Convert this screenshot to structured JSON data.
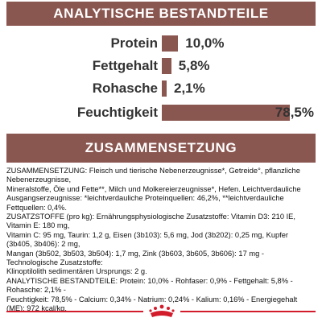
{
  "analysis": {
    "title": "ANALYTISCHE BESTANDTEILE",
    "items": [
      {
        "label": "Protein",
        "value": "10,0%",
        "percent": 10.0
      },
      {
        "label": "Fettgehalt",
        "value": "5,8%",
        "percent": 5.8
      },
      {
        "label": "Rohasche",
        "value": "2,1%",
        "percent": 2.1
      },
      {
        "label": "Feuchtigkeit",
        "value": "78,5%",
        "percent": 78.5
      }
    ]
  },
  "composition": {
    "title": "ZUSAMMENSETZUNG",
    "text": "ZUSAMMENSETZUNG: Fleisch und tierische Nebenerzeugnisse*, Getreide°, pflanzliche Nebenerzeugnisse,\nMineralstoffe, Öle und Fette**, Milch und Molkereierzeugnisse*, Hefen. Leichtverdauliche\nAusgangserzeugnisse: *leichtverdauliche Proteinquellen: 46,2%, **leichtverdauliche Fettquellen: 0,4%.\nZUSATZSTOFFE (pro kg): Ernährungsphysiologische Zusatzstoffe: Vitamin D3: 210 IE, Vitamin E: 180 mg,\nVitamin C: 95 mg, Taurin: 1,2 g, Eisen (3b103): 5,6 mg, Jod (3b202): 0,25 mg, Kupfer (3b405, 3b406): 2 mg,\nMangan (3b502, 3b503, 3b504): 1,7 mg, Zink (3b603, 3b605, 3b606): 17 mg - Technologische Zusatzstoffe:\nKlinoptilolith sedimentären Ursprungs: 2 g.\nANALYTISCHE BESTANDTEILE: Protein: 10,0% - Rohfaser: 0,9% - Fettgehalt: 5,8% - Rohasche: 2,1% -\nFeuchtigkeit: 78,5% - Calcium: 0,34% - Natrium: 0,24% - Kalium: 0,16% - Energiegehalt (ME): 972 kcal/kg."
  },
  "colors": {
    "accent": "#8a5650",
    "brand_red": "#d21b2b"
  },
  "logo": {
    "icon": "royal-canin-crown-icon"
  }
}
